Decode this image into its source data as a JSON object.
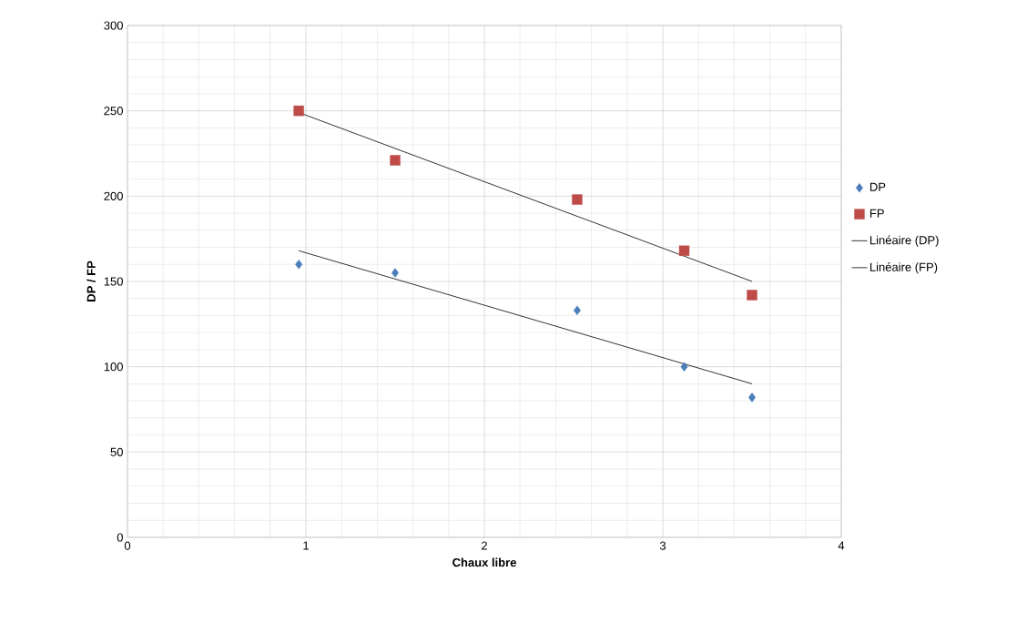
{
  "chart_data": {
    "type": "scatter",
    "xlabel": "Chaux libre",
    "ylabel": "DP / FP",
    "xlim": [
      0,
      4
    ],
    "xticks": [
      0,
      1,
      2,
      3,
      4
    ],
    "ylim": [
      0,
      300
    ],
    "yticks": [
      0,
      50,
      100,
      150,
      200,
      250,
      300
    ],
    "grid": true,
    "legend": "right",
    "series": [
      {
        "name": "DP",
        "color": "#4a7ebb",
        "marker": "diamond",
        "x": [
          0.96,
          1.5,
          2.52,
          3.12,
          3.5
        ],
        "values": [
          160,
          155,
          133,
          100,
          82
        ]
      },
      {
        "name": "FP",
        "color": "#be4b48",
        "marker": "square",
        "x": [
          0.96,
          1.5,
          2.52,
          3.12,
          3.5
        ],
        "values": [
          250,
          221,
          198,
          168,
          142
        ]
      },
      {
        "name": "Linéaire (DP)",
        "type": "line",
        "color": "#000000",
        "marker": "none",
        "x": [
          0.96,
          3.5
        ],
        "values": [
          168,
          90
        ]
      },
      {
        "name": "Linéaire (FP)",
        "type": "line",
        "color": "#000000",
        "marker": "none",
        "x": [
          0.96,
          3.5
        ],
        "values": [
          249,
          150
        ]
      }
    ]
  }
}
